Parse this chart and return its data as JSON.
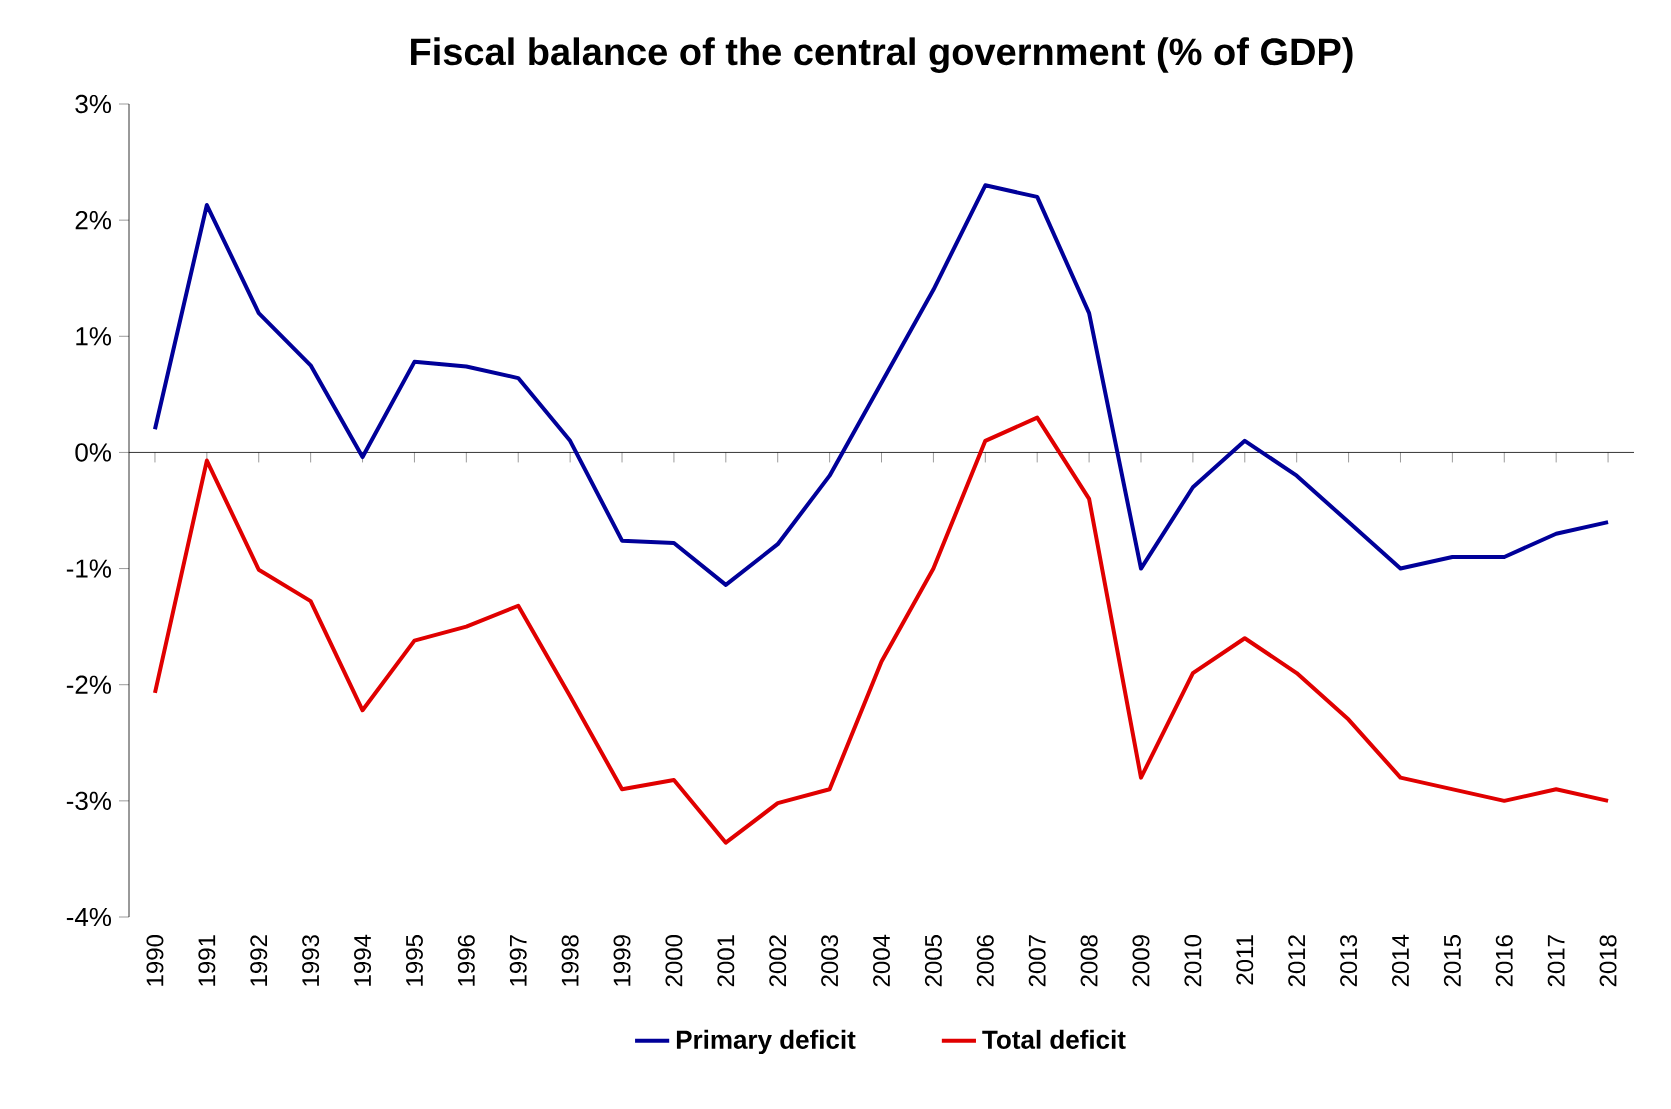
{
  "chart_data": {
    "type": "line",
    "title": "Fiscal balance of the central government (% of GDP)",
    "categories": [
      "1990",
      "1991",
      "1992",
      "1993",
      "1994",
      "1995",
      "1996",
      "1997",
      "1998",
      "1999",
      "2000",
      "2001",
      "2002",
      "2003",
      "2004",
      "2005",
      "2006",
      "2007",
      "2008",
      "2009",
      "2010",
      "2011",
      "2012",
      "2013",
      "2014",
      "2015",
      "2016",
      "2017",
      "2018"
    ],
    "series": [
      {
        "name": "Primary deficit",
        "color": "#000099",
        "values": [
          0.2,
          2.13,
          1.2,
          0.75,
          -0.04,
          0.78,
          0.74,
          0.64,
          0.1,
          -0.76,
          -0.78,
          -1.14,
          -0.79,
          -0.2,
          0.6,
          1.4,
          2.3,
          2.2,
          1.2,
          -1.0,
          -0.3,
          0.1,
          -0.2,
          -0.6,
          -1.0,
          -0.9,
          -0.9,
          -0.7,
          -0.6
        ]
      },
      {
        "name": "Total deficit",
        "color": "#e00000",
        "values": [
          -2.07,
          -0.07,
          -1.01,
          -1.28,
          -2.22,
          -1.62,
          -1.5,
          -1.32,
          -2.1,
          -2.9,
          -2.82,
          -3.36,
          -3.02,
          -2.9,
          -1.8,
          -1.0,
          0.1,
          0.3,
          -0.4,
          -2.8,
          -1.9,
          -1.6,
          -1.9,
          -2.3,
          -2.8,
          -2.9,
          -3.0,
          -2.9,
          -3.0
        ]
      }
    ],
    "ylim": [
      -4,
      3
    ],
    "yticks": [
      {
        "value": -4,
        "label": "-4%"
      },
      {
        "value": -3,
        "label": "-3%"
      },
      {
        "value": -2,
        "label": "-2%"
      },
      {
        "value": -1,
        "label": "-1%"
      },
      {
        "value": 0,
        "label": "0%"
      },
      {
        "value": 1,
        "label": "1%"
      },
      {
        "value": 2,
        "label": "2%"
      },
      {
        "value": 3,
        "label": "3%"
      }
    ],
    "legend": "bottom",
    "marker": "none",
    "line_style": "solid"
  }
}
